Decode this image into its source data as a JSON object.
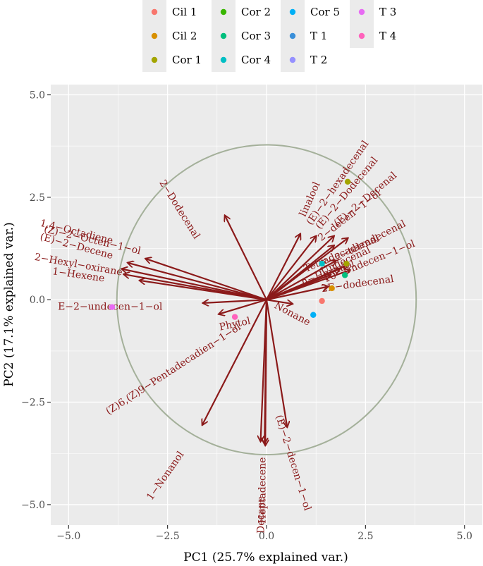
{
  "chart_data": {
    "type": "scatter",
    "subtype": "pca-biplot",
    "xlabel": "PC1 (25.7% explained var.)",
    "ylabel": "PC2 (17.1% explained var.)",
    "xlim": [
      -5.45,
      5.45
    ],
    "ylim": [
      -5.5,
      5.25
    ],
    "xticks": [
      -5.0,
      -2.5,
      0.0,
      2.5,
      5.0
    ],
    "yticks": [
      -5.0,
      -2.5,
      0.0,
      2.5,
      5.0
    ],
    "xtick_labels": [
      "−5.0",
      "−2.5",
      "0.0",
      "2.5",
      "5.0"
    ],
    "ytick_labels": [
      "−5.0",
      "−2.5",
      "0.0",
      "2.5",
      "5.0"
    ],
    "grid": true,
    "legend_position": "top",
    "circle": {
      "cx": 0.0,
      "cy": 0.0,
      "r": 3.78,
      "color": "#a4b09a"
    },
    "groups": [
      {
        "name": "Cil 1",
        "color": "#F8766D"
      },
      {
        "name": "Cil 2",
        "color": "#D89000"
      },
      {
        "name": "Cor 1",
        "color": "#A3A500"
      },
      {
        "name": "Cor 2",
        "color": "#39B600"
      },
      {
        "name": "Cor 3",
        "color": "#00BF7D"
      },
      {
        "name": "Cor 4",
        "color": "#00BFC4"
      },
      {
        "name": "Cor 5",
        "color": "#00B0F6"
      },
      {
        "name": "T 1",
        "color": "#3A8FD9"
      },
      {
        "name": "T 2",
        "color": "#9590FF"
      },
      {
        "name": "T 3",
        "color": "#E76BF3"
      },
      {
        "name": "T 4",
        "color": "#FF62BC"
      }
    ],
    "points": [
      {
        "group": "Cil 1",
        "x": 1.4,
        "y": -0.03
      },
      {
        "group": "Cil 2",
        "x": 1.65,
        "y": 0.28
      },
      {
        "group": "Cor 1",
        "x": 2.05,
        "y": 2.88
      },
      {
        "group": "Cor 1",
        "x": 2.02,
        "y": 0.88
      },
      {
        "group": "Cor 3",
        "x": 1.98,
        "y": 0.6
      },
      {
        "group": "Cor 4",
        "x": 1.4,
        "y": 0.88
      },
      {
        "group": "Cor 5",
        "x": 1.18,
        "y": -0.37
      },
      {
        "group": "T 3",
        "x": -3.9,
        "y": -0.18
      },
      {
        "group": "T 4",
        "x": -0.8,
        "y": -0.42
      }
    ],
    "arrow_color": "#8b1a1a",
    "vectors": [
      {
        "label": "2−Dodecenal",
        "x": -1.05,
        "y": 2.05,
        "lx": -2.2,
        "ly": 2.2,
        "angle": 58
      },
      {
        "label": "(Z)−2−Octen−1−ol",
        "x": -3.05,
        "y": 1.0,
        "lx": -4.4,
        "ly": 1.45,
        "angle": 13
      },
      {
        "label": "(E)−2−Decene",
        "x": -3.5,
        "y": 0.9,
        "lx": -4.8,
        "ly": 1.3,
        "angle": 15
      },
      {
        "label": "2−Hexyl−oxirane",
        "x": -3.65,
        "y": 0.75,
        "lx": -4.75,
        "ly": 0.85,
        "angle": 10
      },
      {
        "label": "1−Hexene",
        "x": -3.6,
        "y": 0.62,
        "lx": -4.75,
        "ly": 0.6,
        "angle": 8
      },
      {
        "label": "1,4−Octadiene",
        "x": -3.2,
        "y": 0.47,
        "lx": -4.8,
        "ly": 1.65,
        "angle": 14
      },
      {
        "label": "E−2−undecen−1−ol",
        "x": -1.6,
        "y": -0.08,
        "lx": -3.95,
        "ly": -0.18,
        "angle": 0
      },
      {
        "label": "(Z)6,(Z)9−Pentadecadien−1−ol",
        "x": -1.62,
        "y": -3.05,
        "lx": -2.35,
        "ly": -1.7,
        "angle": -33
      },
      {
        "label": "Phytol",
        "x": -1.2,
        "y": -0.35,
        "lx": -0.8,
        "ly": -0.6,
        "angle": -12
      },
      {
        "label": "1−Nonanol",
        "x": -0.15,
        "y": -3.45,
        "lx": -2.55,
        "ly": -4.3,
        "angle": -55
      },
      {
        "label": "Decane",
        "x": -0.03,
        "y": -3.55,
        "lx": -0.13,
        "ly": -5.25,
        "angle": -90
      },
      {
        "label": "Heptadecene",
        "x": -0.05,
        "y": -3.5,
        "lx": -0.1,
        "ly": -4.65,
        "angle": -90
      },
      {
        "label": "(E)−2−decen−1−ol",
        "x": 0.52,
        "y": -3.1,
        "lx": 0.67,
        "ly": -3.98,
        "angle": 73
      },
      {
        "label": "linalool",
        "x": 0.85,
        "y": 1.6,
        "lx": 1.1,
        "ly": 2.45,
        "angle": -66
      },
      {
        "label": "(E)−2−hexadecenal",
        "x": 1.25,
        "y": 1.55,
        "lx": 1.8,
        "ly": 2.85,
        "angle": -55
      },
      {
        "label": "(E)−2−Dodecenal",
        "x": 1.7,
        "y": 1.55,
        "lx": 2.03,
        "ly": 2.6,
        "angle": -50
      },
      {
        "label": "2−decen−1−ol",
        "x": 1.7,
        "y": 1.32,
        "lx": 2.1,
        "ly": 2.05,
        "angle": -38
      },
      {
        "label": "(E)−2−Decenal",
        "x": 2.05,
        "y": 1.5,
        "lx": 2.5,
        "ly": 2.45,
        "angle": -40
      },
      {
        "label": "Tetradecadienal",
        "x": 1.75,
        "y": 0.95,
        "lx": 1.9,
        "ly": 1.12,
        "angle": -23
      },
      {
        "label": "E−2−tetradecenal",
        "x": 2.05,
        "y": 0.85,
        "lx": 2.45,
        "ly": 1.35,
        "angle": -27
      },
      {
        "label": "Undecenal",
        "x": 1.85,
        "y": 0.75,
        "lx": 2.0,
        "ly": 0.95,
        "angle": -25
      },
      {
        "label": "n−Hexanol",
        "x": 1.6,
        "y": 0.6,
        "lx": 1.55,
        "ly": 0.65,
        "angle": -20
      },
      {
        "label": "10−Undecen−1−ol",
        "x": 2.1,
        "y": 0.72,
        "lx": 2.6,
        "ly": 0.93,
        "angle": -22
      },
      {
        "label": "2E−dodecenal",
        "x": 1.55,
        "y": 0.32,
        "lx": 2.3,
        "ly": 0.38,
        "angle": -8
      },
      {
        "label": "Nonane",
        "x": 0.65,
        "y": -0.1,
        "lx": 0.65,
        "ly": -0.35,
        "angle": 28
      }
    ]
  }
}
